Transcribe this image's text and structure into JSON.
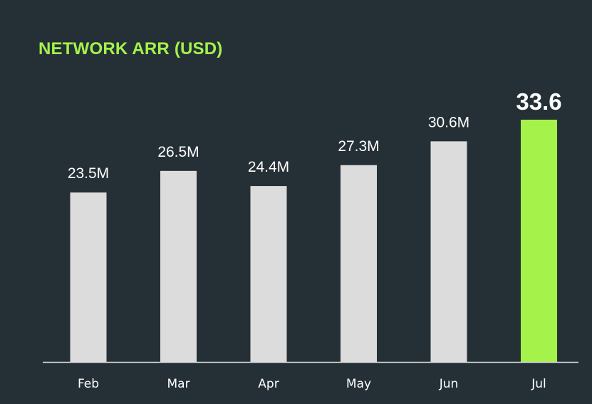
{
  "page": {
    "title": "NETWORK ARR (USD)"
  },
  "colors": {
    "background": "#253036",
    "accent": "#A4F24A",
    "bar": "#DCDCDC",
    "label": "#FFFFFF",
    "axis": "#DCDCDC"
  },
  "chart_data": {
    "type": "bar",
    "title": "NETWORK ARR (USD)",
    "xlabel": "",
    "ylabel": "",
    "categories": [
      "Feb",
      "Mar",
      "Apr",
      "May",
      "Jun",
      "Jul"
    ],
    "values": [
      23.5,
      26.5,
      24.4,
      27.3,
      30.6,
      33.6
    ],
    "value_labels": [
      "23.5M",
      "26.5M",
      "24.4M",
      "27.3M",
      "30.6M",
      "33.6"
    ],
    "highlight_category": "Jul",
    "unit": "M USD",
    "ylim": [
      0,
      33.6
    ],
    "grid": false,
    "legend": "none",
    "y_axis_visible": false
  }
}
